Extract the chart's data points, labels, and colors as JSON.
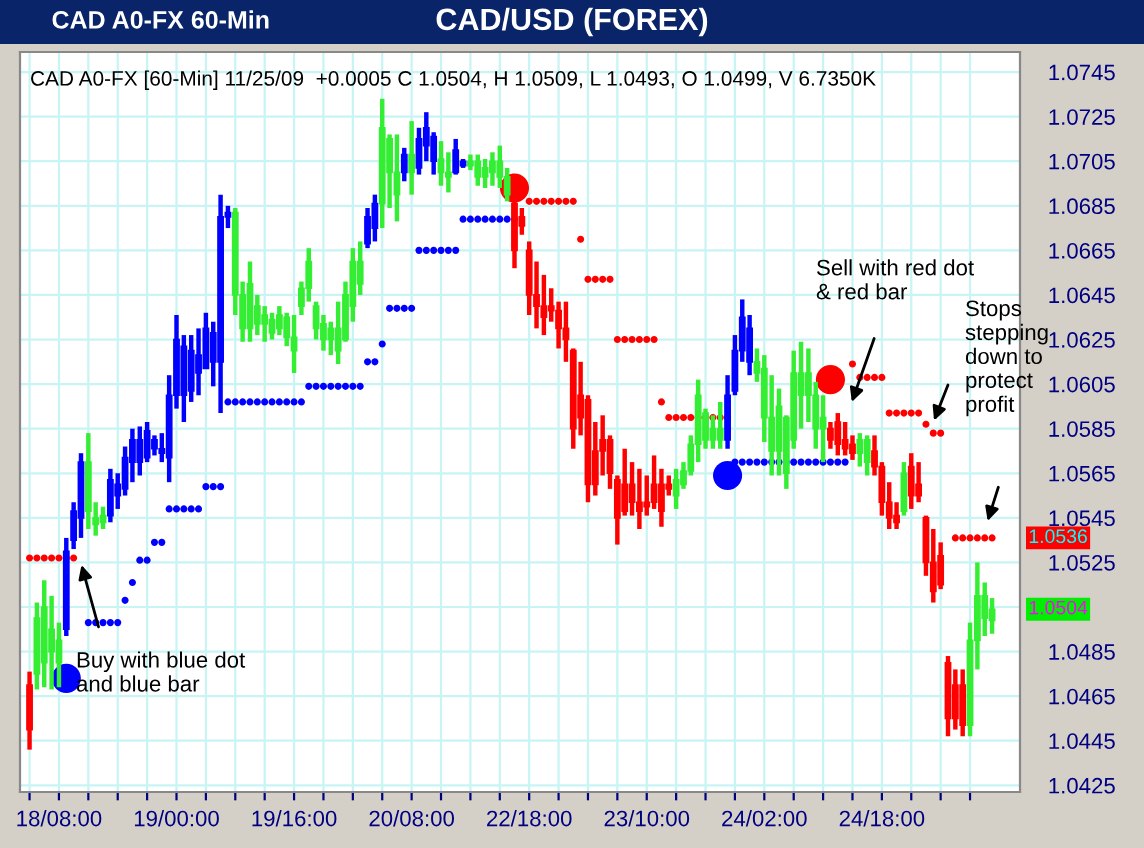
{
  "chart_data": {
    "type": "candlestick",
    "title": "CAD/USD (FOREX)",
    "subtitle": "CAD A0-FX [60-Min] 11/25/09  +0.0005 C 1.0504, H 1.0509, L 1.0493, O 1.0499, V 6.7350K",
    "categories": [
      null,
      null,
      null,
      null,
      "18/08:00",
      null,
      null,
      null,
      null,
      null,
      null,
      null,
      null,
      null,
      null,
      null,
      null,
      null,
      null,
      null,
      "19/00:00",
      null,
      null,
      null,
      null,
      null,
      null,
      null,
      null,
      null,
      null,
      null,
      null,
      null,
      null,
      null,
      "19/16:00",
      null,
      null,
      null,
      null,
      null,
      null,
      null,
      null,
      null,
      null,
      null,
      null,
      null,
      null,
      null,
      "20/08:00",
      null,
      null,
      null,
      null,
      null,
      null,
      null,
      null,
      null,
      null,
      null,
      null,
      null,
      null,
      null,
      "22/18:00",
      null,
      null,
      null,
      null,
      null,
      null,
      null,
      null,
      null,
      null,
      null,
      null,
      null,
      null,
      null,
      "23/10:00",
      null,
      null,
      null,
      null,
      null,
      null,
      null,
      null,
      null,
      null,
      null,
      null,
      null,
      null,
      null,
      "24/02:00",
      null,
      null,
      null,
      null,
      null,
      null,
      null,
      null,
      null,
      null,
      null,
      null,
      null,
      null,
      null,
      "24/18:00",
      null,
      null,
      null,
      null,
      null,
      null,
      null,
      null,
      null,
      null,
      null,
      null,
      null,
      null,
      null
    ],
    "ohlc": [
      [
        1.047,
        1.0476,
        1.0441,
        1.045
      ],
      [
        1.0475,
        1.0507,
        1.0468,
        1.05
      ],
      [
        1.048,
        1.0517,
        1.0469,
        1.0505
      ],
      [
        1.0485,
        1.051,
        1.0468,
        1.0495
      ],
      [
        1.048,
        1.0498,
        1.0469,
        1.049
      ],
      [
        1.0495,
        1.0536,
        1.0492,
        1.053
      ],
      [
        1.0535,
        1.0552,
        1.0531,
        1.0548
      ],
      [
        1.0545,
        1.0574,
        1.0536,
        1.057
      ],
      [
        1.0548,
        1.0583,
        1.054,
        1.057
      ],
      [
        1.0542,
        1.0552,
        1.0537,
        1.0545
      ],
      [
        1.0543,
        1.055,
        1.054,
        1.0546
      ],
      [
        1.0546,
        1.0567,
        1.0543,
        1.0562
      ],
      [
        1.0555,
        1.0565,
        1.0549,
        1.056
      ],
      [
        1.0558,
        1.0577,
        1.0555,
        1.0572
      ],
      [
        1.057,
        1.0585,
        1.0561,
        1.058
      ],
      [
        1.057,
        1.0586,
        1.0564,
        1.058
      ],
      [
        1.0572,
        1.0588,
        1.057,
        1.0584
      ],
      [
        1.0576,
        1.0582,
        1.0573,
        1.058
      ],
      [
        1.0574,
        1.0583,
        1.057,
        1.0576
      ],
      [
        1.0572,
        1.0609,
        1.0561,
        1.06
      ],
      [
        1.06,
        1.0636,
        1.0594,
        1.0625
      ],
      [
        1.06,
        1.0627,
        1.0588,
        1.0622
      ],
      [
        1.0602,
        1.0627,
        1.0597,
        1.062
      ],
      [
        1.061,
        1.063,
        1.06,
        1.0618
      ],
      [
        1.0612,
        1.0637,
        1.0612,
        1.063
      ],
      [
        1.0615,
        1.0633,
        1.0604,
        1.0628
      ],
      [
        1.0615,
        1.069,
        1.0592,
        1.068
      ],
      [
        1.068,
        1.0685,
        1.0675,
        1.0682
      ],
      [
        1.0645,
        1.0684,
        1.0636,
        1.0682
      ],
      [
        1.063,
        1.0651,
        1.0624,
        1.0645
      ],
      [
        1.063,
        1.066,
        1.0624,
        1.065
      ],
      [
        1.0632,
        1.0645,
        1.0627,
        1.064
      ],
      [
        1.0632,
        1.064,
        1.0624,
        1.0636
      ],
      [
        1.0628,
        1.0637,
        1.0625,
        1.0634
      ],
      [
        1.063,
        1.064,
        1.0627,
        1.0636
      ],
      [
        1.0626,
        1.0637,
        1.0622,
        1.0635
      ],
      [
        1.062,
        1.0636,
        1.061,
        1.0626
      ],
      [
        1.064,
        1.0651,
        1.0636,
        1.0648
      ],
      [
        1.0648,
        1.0666,
        1.0642,
        1.066
      ],
      [
        1.063,
        1.0642,
        1.0625,
        1.064
      ],
      [
        1.0625,
        1.0636,
        1.062,
        1.0632
      ],
      [
        1.0625,
        1.0633,
        1.0618,
        1.063
      ],
      [
        1.062,
        1.0642,
        1.0614,
        1.063
      ],
      [
        1.0625,
        1.0651,
        1.0624,
        1.0645
      ],
      [
        1.064,
        1.0666,
        1.0633,
        1.066
      ],
      [
        1.065,
        1.0669,
        1.0645,
        1.066
      ],
      [
        1.0668,
        1.0684,
        1.0666,
        1.068
      ],
      [
        1.0675,
        1.069,
        1.0669,
        1.0686
      ],
      [
        1.0686,
        1.0733,
        1.0675,
        1.072
      ],
      [
        1.07,
        1.0717,
        1.0684,
        1.0715
      ],
      [
        1.069,
        1.0717,
        1.0678,
        1.07
      ],
      [
        1.07,
        1.0711,
        1.0696,
        1.0708
      ],
      [
        1.07,
        1.0723,
        1.069,
        1.0708
      ],
      [
        1.0702,
        1.072,
        1.0699,
        1.0715
      ],
      [
        1.0712,
        1.0727,
        1.0705,
        1.072
      ],
      [
        1.0705,
        1.0718,
        1.0699,
        1.0716
      ],
      [
        1.07,
        1.0714,
        1.0694,
        1.0706
      ],
      [
        1.0698,
        1.0709,
        1.0691,
        1.07
      ],
      [
        1.07,
        1.0715,
        1.0699,
        1.071
      ],
      [
        1.0703,
        1.0706,
        1.0702,
        1.0705
      ],
      [
        1.0703,
        1.0708,
        1.0701,
        1.0705
      ],
      [
        1.0698,
        1.0708,
        1.0694,
        1.0705
      ],
      [
        1.0698,
        1.0706,
        1.0693,
        1.0702
      ],
      [
        1.07,
        1.0709,
        1.0694,
        1.0705
      ],
      [
        1.0698,
        1.0712,
        1.0693,
        1.0705
      ],
      [
        1.069,
        1.0702,
        1.0687,
        1.0698
      ],
      [
        1.0686,
        1.0687,
        1.0657,
        1.0665
      ],
      [
        1.068,
        1.0684,
        1.0672,
        1.0676
      ],
      [
        1.0665,
        1.0669,
        1.0636,
        1.0645
      ],
      [
        1.0645,
        1.066,
        1.063,
        1.064
      ],
      [
        1.064,
        1.0654,
        1.0627,
        1.0635
      ],
      [
        1.064,
        1.0648,
        1.0633,
        1.0638
      ],
      [
        1.0638,
        1.0642,
        1.0621,
        1.063
      ],
      [
        1.063,
        1.0642,
        1.0615,
        1.0625
      ],
      [
        1.062,
        1.0621,
        1.0576,
        1.0585
      ],
      [
        1.06,
        1.0615,
        1.0582,
        1.059
      ],
      [
        1.0598,
        1.06,
        1.0552,
        1.056
      ],
      [
        1.0575,
        1.0588,
        1.0555,
        1.056
      ],
      [
        1.058,
        1.0591,
        1.0564,
        1.0575
      ],
      [
        1.058,
        1.0582,
        1.0558,
        1.0565
      ],
      [
        1.0562,
        1.0564,
        1.0533,
        1.0545
      ],
      [
        1.056,
        1.0576,
        1.0546,
        1.0548
      ],
      [
        1.056,
        1.057,
        1.0546,
        1.0552
      ],
      [
        1.0552,
        1.0567,
        1.054,
        1.0548
      ],
      [
        1.0552,
        1.0564,
        1.0546,
        1.055
      ],
      [
        1.056,
        1.0573,
        1.0549,
        1.0552
      ],
      [
        1.056,
        1.0567,
        1.0541,
        1.0548
      ],
      [
        1.056,
        1.0564,
        1.0555,
        1.0558
      ],
      [
        1.0555,
        1.0567,
        1.0549,
        1.0562
      ],
      [
        1.056,
        1.057,
        1.0558,
        1.0566
      ],
      [
        1.0566,
        1.0582,
        1.0564,
        1.0578
      ],
      [
        1.0578,
        1.0607,
        1.057,
        1.06
      ],
      [
        1.058,
        1.0594,
        1.0576,
        1.0592
      ],
      [
        1.058,
        1.0591,
        1.0576,
        1.0585
      ],
      [
        1.058,
        1.0597,
        1.0576,
        1.0585
      ],
      [
        1.058,
        1.0609,
        1.0576,
        1.06
      ],
      [
        1.0602,
        1.0627,
        1.06,
        1.062
      ],
      [
        1.062,
        1.0643,
        1.0615,
        1.0635
      ],
      [
        1.0615,
        1.0636,
        1.0609,
        1.063
      ],
      [
        1.061,
        1.0621,
        1.0606,
        1.0615
      ],
      [
        1.059,
        1.0618,
        1.0579,
        1.0612
      ],
      [
        1.0575,
        1.0609,
        1.0564,
        1.059
      ],
      [
        1.0575,
        1.0603,
        1.0564,
        1.0595
      ],
      [
        1.0565,
        1.0591,
        1.0558,
        1.059
      ],
      [
        1.058,
        1.062,
        1.0576,
        1.061
      ],
      [
        1.06,
        1.0624,
        1.0585,
        1.061
      ],
      [
        1.06,
        1.0621,
        1.0588,
        1.061
      ],
      [
        1.0585,
        1.0606,
        1.0576,
        1.06
      ],
      [
        1.0585,
        1.06,
        1.057,
        1.059
      ],
      [
        1.0585,
        1.0588,
        1.0576,
        1.058
      ],
      [
        1.0588,
        1.0592,
        1.0573,
        1.0578
      ],
      [
        1.058,
        1.0588,
        1.0573,
        1.0576
      ],
      [
        1.0578,
        1.0582,
        1.0571,
        1.0574
      ],
      [
        1.0574,
        1.0583,
        1.0568,
        1.058
      ],
      [
        1.057,
        1.0582,
        1.0564,
        1.058
      ],
      [
        1.0575,
        1.0582,
        1.0564,
        1.0568
      ],
      [
        1.0568,
        1.057,
        1.0546,
        1.0552
      ],
      [
        1.0552,
        1.0561,
        1.054,
        1.0545
      ],
      [
        1.0546,
        1.0552,
        1.054,
        1.0543
      ],
      [
        1.0548,
        1.057,
        1.0546,
        1.0565
      ],
      [
        1.0568,
        1.0574,
        1.0549,
        1.0555
      ],
      [
        1.056,
        1.057,
        1.0552,
        1.0555
      ],
      [
        1.0545,
        1.0546,
        1.0519,
        1.0525
      ],
      [
        1.0525,
        1.054,
        1.0507,
        1.0512
      ],
      [
        1.0528,
        1.0534,
        1.0513,
        1.0515
      ],
      [
        1.048,
        1.0483,
        1.0447,
        1.0455
      ],
      [
        1.047,
        1.0477,
        1.045,
        1.0455
      ],
      [
        1.047,
        1.0477,
        1.0447,
        1.0452
      ],
      [
        1.0452,
        1.0498,
        1.0447,
        1.049
      ],
      [
        1.049,
        1.0525,
        1.0477,
        1.051
      ],
      [
        1.05,
        1.0516,
        1.0492,
        1.051
      ],
      [
        1.0499,
        1.0509,
        1.0493,
        1.0504
      ]
    ],
    "colors": [
      "#ff0000",
      "#33ee33",
      "#33ee33",
      "#33ee33",
      "#33ee33",
      "#0000ff",
      "#0000ff",
      "#0000ff",
      "#33ee33",
      "#33ee33",
      "#33ee33",
      "#0000ff",
      "#0000ff",
      "#0000ff",
      "#0000ff",
      "#0000ff",
      "#0000ff",
      "#0000ff",
      "#0000ff",
      "#0000ff",
      "#0000ff",
      "#0000ff",
      "#0000ff",
      "#0000ff",
      "#0000ff",
      "#0000ff",
      "#0000ff",
      "#0000ff",
      "#33ee33",
      "#33ee33",
      "#33ee33",
      "#33ee33",
      "#33ee33",
      "#33ee33",
      "#33ee33",
      "#33ee33",
      "#33ee33",
      "#33ee33",
      "#33ee33",
      "#33ee33",
      "#33ee33",
      "#33ee33",
      "#33ee33",
      "#33ee33",
      "#33ee33",
      "#33ee33",
      "#0000ff",
      "#0000ff",
      "#33ee33",
      "#33ee33",
      "#33ee33",
      "#0000ff",
      "#33ee33",
      "#0000ff",
      "#0000ff",
      "#0000ff",
      "#33ee33",
      "#33ee33",
      "#0000ff",
      "#0000ff",
      "#33ee33",
      "#33ee33",
      "#33ee33",
      "#33ee33",
      "#33ee33",
      "#33ee33",
      "#ff0000",
      "#ff0000",
      "#ff0000",
      "#ff0000",
      "#ff0000",
      "#ff0000",
      "#ff0000",
      "#ff0000",
      "#ff0000",
      "#ff0000",
      "#ff0000",
      "#ff0000",
      "#ff0000",
      "#ff0000",
      "#ff0000",
      "#ff0000",
      "#ff0000",
      "#ff0000",
      "#ff0000",
      "#ff0000",
      "#ff0000",
      "#ff0000",
      "#33ee33",
      "#33ee33",
      "#33ee33",
      "#33ee33",
      "#33ee33",
      "#33ee33",
      "#33ee33",
      "#0000ff",
      "#0000ff",
      "#0000ff",
      "#0000ff",
      "#33ee33",
      "#33ee33",
      "#33ee33",
      "#33ee33",
      "#33ee33",
      "#33ee33",
      "#33ee33",
      "#33ee33",
      "#33ee33",
      "#33ee33",
      "#ff0000",
      "#ff0000",
      "#ff0000",
      "#ff0000",
      "#33ee33",
      "#33ee33",
      "#ff0000",
      "#ff0000",
      "#ff0000",
      "#ff0000",
      "#33ee33",
      "#ff0000",
      "#ff0000",
      "#ff0000",
      "#ff0000",
      "#ff0000",
      "#ff0000",
      "#ff0000",
      "#ff0000",
      "#33ee33",
      "#33ee33",
      "#33ee33",
      "#33ee33"
    ],
    "series": [
      {
        "type": "bubble",
        "color": "#ff0000",
        "values": [
          1.0527,
          1.0527,
          1.0527,
          1.0527,
          1.0527,
          1.0527,
          1.0527,
          null,
          null,
          null,
          null,
          null,
          null,
          null,
          null,
          null,
          null,
          null,
          null,
          null,
          null,
          null,
          null,
          null,
          null,
          null,
          null,
          null,
          null,
          null,
          null,
          null,
          null,
          null,
          null,
          null,
          null,
          null,
          null,
          null,
          null,
          null,
          null,
          null,
          null,
          null,
          null,
          null,
          null,
          null,
          null,
          null,
          null,
          null,
          null,
          null,
          null,
          null,
          null,
          null,
          null,
          null,
          null,
          null,
          null,
          null,
          1.0693,
          null,
          1.0687,
          1.0687,
          1.0687,
          1.0687,
          1.0687,
          1.0687,
          1.0687,
          1.067,
          1.0652,
          1.0652,
          1.0652,
          1.0652,
          1.0625,
          1.0625,
          1.0625,
          1.0625,
          1.0625,
          1.0625,
          1.0597,
          1.059,
          1.059,
          1.059,
          1.059,
          1.059,
          1.059,
          1.059,
          1.059,
          1.059,
          null,
          null,
          null,
          null,
          null,
          null,
          null,
          null,
          null,
          null,
          null,
          null,
          null,
          1.0607,
          null,
          null,
          1.0614,
          1.0608,
          1.0608,
          1.0608,
          1.0608,
          1.0592,
          1.0592,
          1.0592,
          1.0592,
          1.0592,
          1.0587,
          1.0583,
          1.0583,
          null,
          1.0536,
          1.0536,
          1.0536,
          1.0536,
          1.0536,
          1.0536
        ],
        "sizes": [
          0.06,
          0.06,
          0.06,
          0.06,
          0.06,
          0.06,
          0.06,
          null,
          null,
          null,
          null,
          null,
          null,
          null,
          null,
          null,
          null,
          null,
          null,
          null,
          null,
          null,
          null,
          null,
          null,
          null,
          null,
          null,
          null,
          null,
          null,
          null,
          null,
          null,
          null,
          null,
          null,
          null,
          null,
          null,
          null,
          null,
          null,
          null,
          null,
          null,
          null,
          null,
          null,
          null,
          null,
          null,
          null,
          null,
          null,
          null,
          null,
          null,
          null,
          null,
          null,
          null,
          null,
          null,
          null,
          null,
          1,
          null,
          0.06,
          0.06,
          0.06,
          0.06,
          0.06,
          0.06,
          0.06,
          0.06,
          0.06,
          0.06,
          0.06,
          0.06,
          0.06,
          0.06,
          0.06,
          0.06,
          0.06,
          0.06,
          0.06,
          0.06,
          0.06,
          0.06,
          0.06,
          0.06,
          0.06,
          0.06,
          0.06,
          0.06,
          null,
          null,
          null,
          null,
          null,
          null,
          null,
          null,
          null,
          null,
          null,
          null,
          null,
          1,
          null,
          null,
          0.06,
          0.06,
          0.06,
          0.06,
          0.06,
          0.06,
          0.06,
          0.06,
          0.06,
          0.06,
          0.06,
          0.06,
          0.06,
          null,
          0.06,
          0.06,
          0.06,
          0.06,
          0.06,
          0.06
        ]
      },
      {
        "type": "bubble",
        "color": "#0000ff",
        "values": [
          null,
          null,
          null,
          null,
          null,
          1.0473,
          null,
          null,
          1.0498,
          1.0498,
          1.0498,
          1.0498,
          1.0498,
          1.0508,
          1.0516,
          1.0526,
          1.0526,
          1.0534,
          1.0534,
          1.0549,
          1.0549,
          1.0549,
          1.0549,
          1.0549,
          1.0559,
          1.0559,
          1.0559,
          1.0597,
          1.0597,
          1.0597,
          1.0597,
          1.0597,
          1.0597,
          1.0597,
          1.0597,
          1.0597,
          1.0597,
          1.0597,
          1.0604,
          1.0604,
          1.0604,
          1.0604,
          1.0604,
          1.0604,
          1.0604,
          1.0604,
          1.0615,
          1.0615,
          1.0623,
          1.0639,
          1.0639,
          1.0639,
          1.0639,
          1.0665,
          1.0665,
          1.0665,
          1.0665,
          1.0665,
          1.0665,
          1.0679,
          1.0679,
          1.0679,
          1.0679,
          1.0679,
          1.0679,
          1.0679,
          1.0679,
          null,
          null,
          null,
          null,
          null,
          null,
          null,
          null,
          null,
          null,
          null,
          null,
          null,
          null,
          null,
          null,
          null,
          null,
          null,
          null,
          null,
          null,
          null,
          null,
          null,
          null,
          null,
          null,
          1.0564,
          1.057,
          1.057,
          1.057,
          1.057,
          1.057,
          1.057,
          1.057,
          1.057,
          1.057,
          1.057,
          1.057,
          1.057,
          1.057,
          1.057,
          1.057,
          1.057,
          null,
          null,
          null,
          null,
          null,
          null,
          null,
          null,
          null,
          null,
          null,
          null,
          null,
          null,
          null,
          null,
          null,
          null,
          null,
          null
        ],
        "sizes": [
          null,
          null,
          null,
          null,
          null,
          1,
          null,
          null,
          0.06,
          0.06,
          0.06,
          0.06,
          0.06,
          0.06,
          0.06,
          0.06,
          0.06,
          0.06,
          0.06,
          0.06,
          0.06,
          0.06,
          0.06,
          0.06,
          0.06,
          0.06,
          0.06,
          0.06,
          0.06,
          0.06,
          0.06,
          0.06,
          0.06,
          0.06,
          0.06,
          0.06,
          0.06,
          0.06,
          0.06,
          0.06,
          0.06,
          0.06,
          0.06,
          0.06,
          0.06,
          0.06,
          0.06,
          0.06,
          0.06,
          0.06,
          0.06,
          0.06,
          0.06,
          0.06,
          0.06,
          0.06,
          0.06,
          0.06,
          0.06,
          0.06,
          0.06,
          0.06,
          0.06,
          0.06,
          0.06,
          0.06,
          0.06,
          null,
          null,
          null,
          null,
          null,
          null,
          null,
          null,
          null,
          null,
          null,
          null,
          null,
          null,
          null,
          null,
          null,
          null,
          null,
          null,
          null,
          null,
          null,
          null,
          null,
          null,
          null,
          null,
          1,
          0.06,
          0.06,
          0.06,
          0.06,
          0.06,
          0.06,
          0.06,
          0.06,
          0.06,
          0.06,
          0.06,
          0.06,
          0.06,
          0.06,
          0.06,
          0.06,
          null,
          null,
          null,
          null,
          null,
          null,
          null,
          null,
          null,
          null,
          null,
          null,
          null,
          null,
          null,
          null,
          null,
          null,
          null,
          null
        ]
      }
    ],
    "annotations": [
      "CAD A0-FX 60-Min",
      "Buy with blue dot\nand blue bar",
      "Sell with red dot\n& red bar",
      "Stops\nstepping\ndown to\nprotect\nprofit",
      "1.0536",
      "1.0504"
    ],
    "ylim": [
      1.0422,
      1.0754
    ],
    "yticks": [
      1.0425,
      1.0445,
      1.0465,
      1.0485,
      {
        "value": 1.0505,
        "label": null
      },
      1.0525,
      1.0545,
      1.0565,
      1.0585,
      1.0605,
      1.0625,
      1.0645,
      1.0665,
      1.0685,
      1.0705,
      1.0725,
      1.0745
    ],
    "grid": true
  }
}
